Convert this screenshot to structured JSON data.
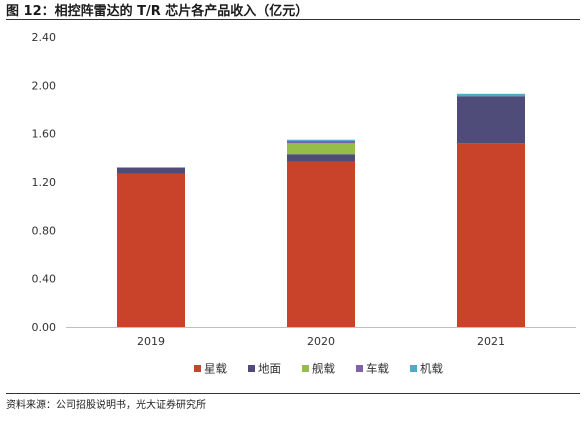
{
  "figure": {
    "title": "图 12：相控阵雷达的 T/R 芯片各产品收入（亿元）",
    "source": "资料来源：公司招股说明书，光大证券研究所"
  },
  "chart_data": {
    "type": "bar",
    "stacked": true,
    "categories": [
      "2019",
      "2020",
      "2021"
    ],
    "series": [
      {
        "name": "星载",
        "color": "#c9432a",
        "values": [
          1.27,
          1.37,
          1.52
        ]
      },
      {
        "name": "地面",
        "color": "#4f4c7a",
        "values": [
          0.05,
          0.06,
          0.39
        ]
      },
      {
        "name": "舰载",
        "color": "#96bd4a",
        "values": [
          0.0,
          0.09,
          0.0
        ]
      },
      {
        "name": "车载",
        "color": "#8062a8",
        "values": [
          0.0,
          0.02,
          0.0
        ]
      },
      {
        "name": "机载",
        "color": "#4bacc6",
        "values": [
          0.0,
          0.01,
          0.02
        ]
      }
    ],
    "ylim": [
      0,
      2.4
    ],
    "yticks": [
      "0.00",
      "0.40",
      "0.80",
      "1.20",
      "1.60",
      "2.00",
      "2.40"
    ],
    "ytick_values": [
      0,
      0.4,
      0.8,
      1.2,
      1.6,
      2.0,
      2.4
    ],
    "grid": false,
    "legend_position": "bottom"
  }
}
